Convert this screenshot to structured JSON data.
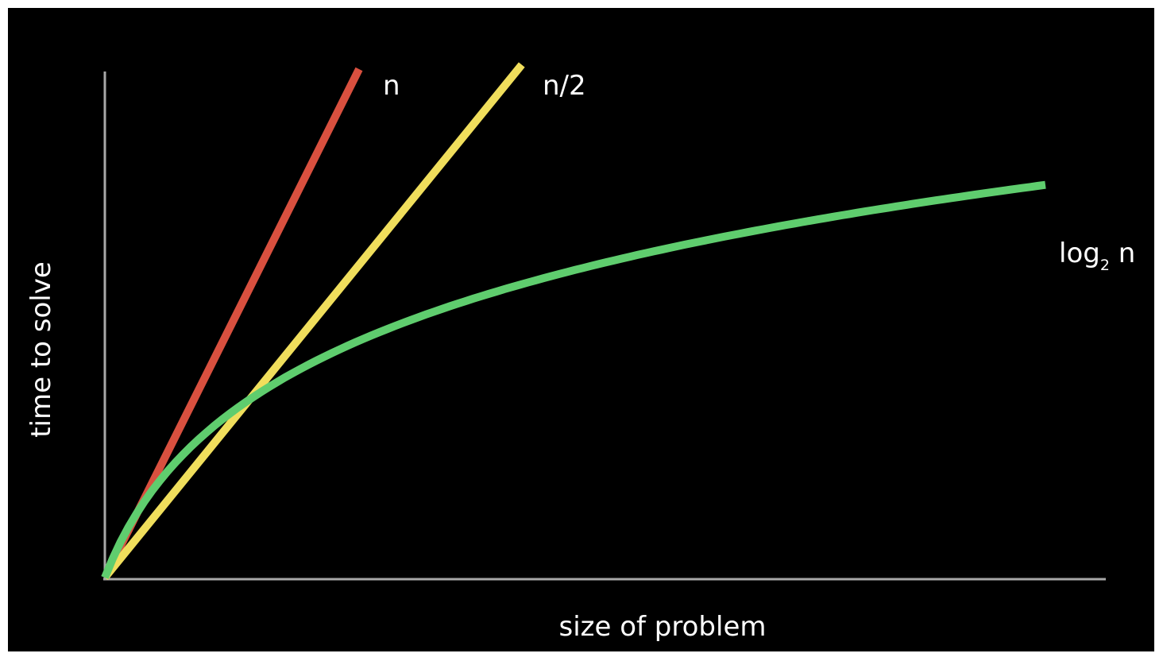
{
  "chart_data": {
    "type": "line",
    "title": "",
    "xlabel": "size of problem",
    "ylabel": "time to solve",
    "grid": false,
    "axis_ticks": false,
    "background": "#000000",
    "axis_color": "#a8a8a8",
    "label_color": "#ffffff",
    "series": [
      {
        "name": "n",
        "label_main": "n",
        "label_sub": "",
        "label_suffix": "",
        "color": "#d9503f",
        "function": "linear",
        "slope": 2,
        "x_end": 1
      },
      {
        "name": "n/2",
        "label_main": "n/2",
        "label_sub": "",
        "label_suffix": "",
        "color": "#f0de5c",
        "function": "linear",
        "slope": 1.23,
        "x_end": 1.64
      },
      {
        "name": "log2 n",
        "label_main": "log",
        "label_sub": "2",
        "label_suffix": " n",
        "color": "#5fcd6e",
        "function": "logarithmic",
        "scale": 0.52,
        "k": 0.2,
        "x_end": 3.7
      }
    ]
  }
}
